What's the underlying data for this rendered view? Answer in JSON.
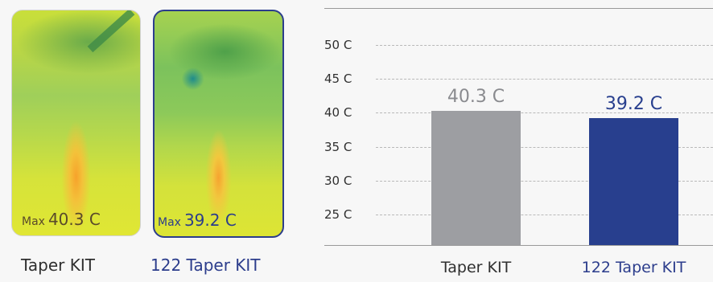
{
  "thumbnails": [
    {
      "max_word": "Max",
      "max_value": "40.3 C",
      "caption": "Taper KIT"
    },
    {
      "max_word": "Max",
      "max_value": "39.2 C",
      "caption": "122 Taper KIT"
    }
  ],
  "chart_data": {
    "type": "bar",
    "categories": [
      "Taper KIT",
      "122 Taper KIT"
    ],
    "values": [
      40.3,
      39.2
    ],
    "data_labels": [
      "40.3 C",
      "39.2 C"
    ],
    "bar_colors": [
      "#9d9ea2",
      "#283f8e"
    ],
    "label_colors": [
      "#8a8b8f",
      "#283f8e"
    ],
    "category_label_colors": [
      "#2f2f2f",
      "#2c3d8c"
    ],
    "yticks": [
      25,
      30,
      35,
      40,
      45,
      50
    ],
    "ytick_labels": [
      "25 C",
      "30 C",
      "35 C",
      "40 C",
      "45 C",
      "50 C"
    ],
    "ylim": [
      20,
      55
    ],
    "grid": "dashed",
    "title": "",
    "xlabel": "",
    "ylabel": ""
  }
}
